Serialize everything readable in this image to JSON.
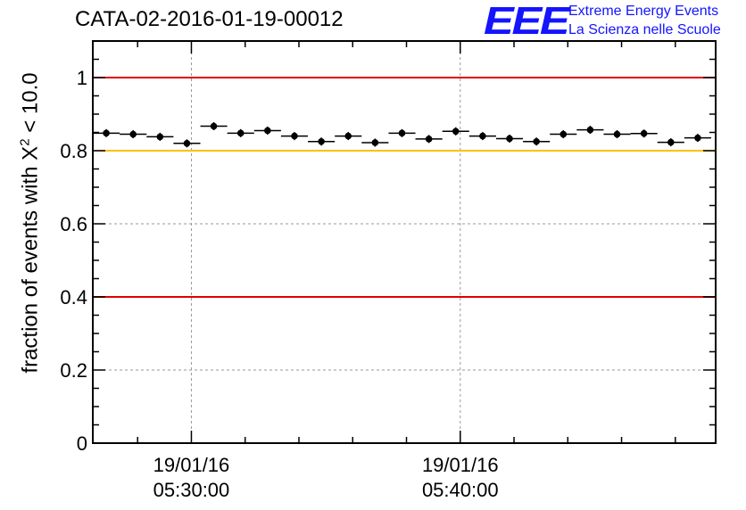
{
  "title": "CATA-02-2016-01-19-00012",
  "logo": {
    "mark": "EEE",
    "line1": "Extreme Energy Events",
    "line2": "La Scienza nelle Scuole"
  },
  "chart_data": {
    "type": "scatter",
    "title": "CATA-02-2016-01-19-00012",
    "ylabel": {
      "prefix": "fraction of events with ",
      "symbol": "Χ",
      "superscript": "2",
      "suffix": " < 10.0"
    },
    "xlabel": "",
    "ylim": [
      0,
      1.1
    ],
    "xlim": [
      "2016-01-19 05:26:20",
      "2016-01-19 05:49:30"
    ],
    "yticks": [
      "0",
      "0.2",
      "0.4",
      "0.6",
      "0.8",
      "1"
    ],
    "xticks": [
      {
        "time": "2016-01-19 05:30:00",
        "date": "19/01/16",
        "clock": "05:30:00"
      },
      {
        "time": "2016-01-19 05:40:00",
        "date": "19/01/16",
        "clock": "05:40:00"
      }
    ],
    "grid": true,
    "reference_lines": [
      {
        "y": 1.0,
        "color": "#e00000"
      },
      {
        "y": 0.8,
        "color": "#ffc000"
      },
      {
        "y": 0.4,
        "color": "#e00000"
      }
    ],
    "points": [
      {
        "t": "2016-01-19 05:26:50",
        "y": 0.848
      },
      {
        "t": "2016-01-19 05:27:50",
        "y": 0.845
      },
      {
        "t": "2016-01-19 05:28:50",
        "y": 0.838
      },
      {
        "t": "2016-01-19 05:29:50",
        "y": 0.82
      },
      {
        "t": "2016-01-19 05:30:50",
        "y": 0.867
      },
      {
        "t": "2016-01-19 05:31:50",
        "y": 0.848
      },
      {
        "t": "2016-01-19 05:32:50",
        "y": 0.855
      },
      {
        "t": "2016-01-19 05:33:50",
        "y": 0.84
      },
      {
        "t": "2016-01-19 05:34:50",
        "y": 0.825
      },
      {
        "t": "2016-01-19 05:35:50",
        "y": 0.84
      },
      {
        "t": "2016-01-19 05:36:50",
        "y": 0.822
      },
      {
        "t": "2016-01-19 05:37:50",
        "y": 0.848
      },
      {
        "t": "2016-01-19 05:38:50",
        "y": 0.832
      },
      {
        "t": "2016-01-19 05:39:50",
        "y": 0.853
      },
      {
        "t": "2016-01-19 05:40:50",
        "y": 0.84
      },
      {
        "t": "2016-01-19 05:41:50",
        "y": 0.833
      },
      {
        "t": "2016-01-19 05:42:50",
        "y": 0.825
      },
      {
        "t": "2016-01-19 05:43:50",
        "y": 0.845
      },
      {
        "t": "2016-01-19 05:44:50",
        "y": 0.857
      },
      {
        "t": "2016-01-19 05:45:50",
        "y": 0.845
      },
      {
        "t": "2016-01-19 05:46:50",
        "y": 0.847
      },
      {
        "t": "2016-01-19 05:47:50",
        "y": 0.823
      },
      {
        "t": "2016-01-19 05:48:50",
        "y": 0.835
      }
    ],
    "x_error_s": 30,
    "y_error": 0.011
  },
  "colors": {
    "marker": "#000000",
    "grid": "#9a9a9a"
  }
}
